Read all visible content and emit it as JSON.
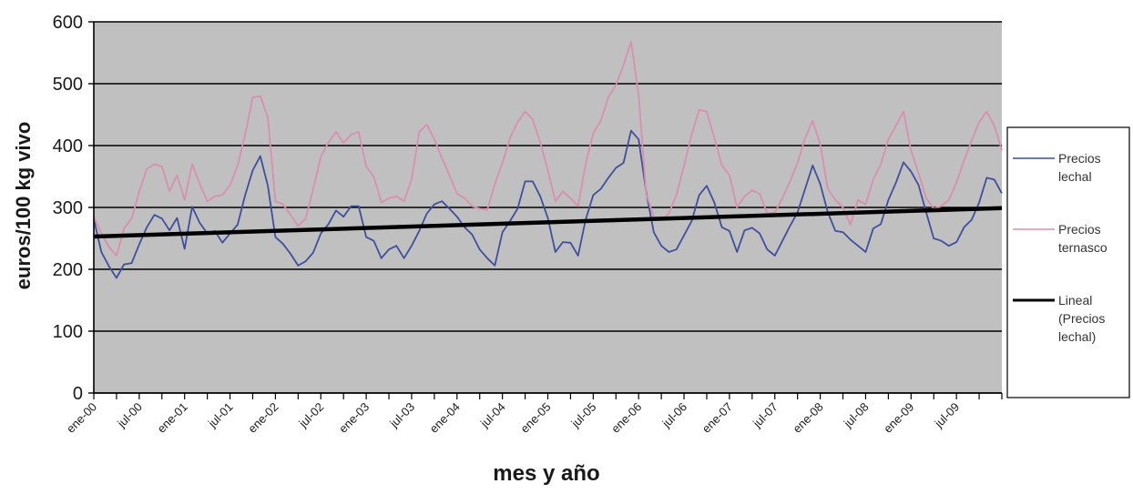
{
  "chart_data": {
    "type": "line",
    "title": "",
    "xlabel": "mes y año",
    "ylabel": "euros/100 kg vivo",
    "ylim": [
      0,
      600
    ],
    "yticks": [
      "0",
      "100",
      "200",
      "300",
      "400",
      "500",
      "600"
    ],
    "xticks": [
      "ene-00",
      "jul-00",
      "ene-01",
      "jul-01",
      "ene-02",
      "jul-02",
      "ene-03",
      "jul-03",
      "ene-04",
      "jul-04",
      "ene-05",
      "jul-05",
      "ene-06",
      "jul-06",
      "ene-07",
      "jul-07",
      "ene-08",
      "jul-08",
      "ene-09",
      "jul-09"
    ],
    "x_range": [
      "ene-00",
      "dic-09"
    ],
    "grid": "horizontal",
    "legend_position": "right",
    "plot_background": "#c0c0c0",
    "series": [
      {
        "name": "Precios lechal",
        "color": "#3e4f9e",
        "values": [
          281,
          228,
          205,
          186,
          208,
          210,
          240,
          268,
          288,
          282,
          263,
          283,
          233,
          301,
          275,
          258,
          262,
          243,
          258,
          272,
          320,
          360,
          383,
          335,
          252,
          241,
          225,
          206,
          213,
          227,
          258,
          273,
          295,
          285,
          302,
          302,
          252,
          246,
          218,
          232,
          238,
          218,
          238,
          262,
          290,
          305,
          310,
          298,
          285,
          268,
          256,
          232,
          218,
          206,
          260,
          278,
          298,
          342,
          342,
          318,
          283,
          228,
          244,
          243,
          222,
          280,
          320,
          330,
          348,
          364,
          372,
          424,
          410,
          325,
          260,
          238,
          228,
          232,
          255,
          278,
          320,
          335,
          308,
          268,
          262,
          228,
          263,
          267,
          258,
          232,
          222,
          246,
          270,
          292,
          330,
          368,
          338,
          292,
          262,
          260,
          248,
          238,
          228,
          266,
          273,
          312,
          340,
          373,
          358,
          336,
          292,
          250,
          246,
          238,
          244,
          268,
          280,
          308,
          348,
          345,
          323
        ]
      },
      {
        "name": "Precios ternasco",
        "color": "#d98fb0",
        "values": [
          285,
          258,
          236,
          222,
          266,
          282,
          325,
          362,
          370,
          366,
          326,
          352,
          312,
          370,
          338,
          310,
          318,
          320,
          336,
          368,
          418,
          478,
          480,
          445,
          310,
          305,
          288,
          270,
          282,
          330,
          382,
          405,
          422,
          404,
          418,
          422,
          366,
          350,
          308,
          315,
          318,
          310,
          345,
          422,
          434,
          410,
          380,
          352,
          322,
          315,
          302,
          298,
          296,
          338,
          372,
          412,
          438,
          455,
          442,
          405,
          360,
          310,
          326,
          315,
          302,
          370,
          420,
          440,
          478,
          498,
          530,
          568,
          482,
          322,
          285,
          280,
          290,
          320,
          368,
          418,
          458,
          455,
          412,
          368,
          352,
          300,
          318,
          328,
          322,
          290,
          292,
          315,
          342,
          372,
          412,
          440,
          402,
          330,
          312,
          300,
          272,
          312,
          305,
          345,
          370,
          410,
          432,
          455,
          392,
          355,
          315,
          298,
          302,
          312,
          340,
          376,
          408,
          438,
          455,
          432,
          392
        ]
      },
      {
        "name": "Lineal (Precios lechal)",
        "color": "#000000",
        "values": [
          253,
          299
        ]
      }
    ]
  }
}
